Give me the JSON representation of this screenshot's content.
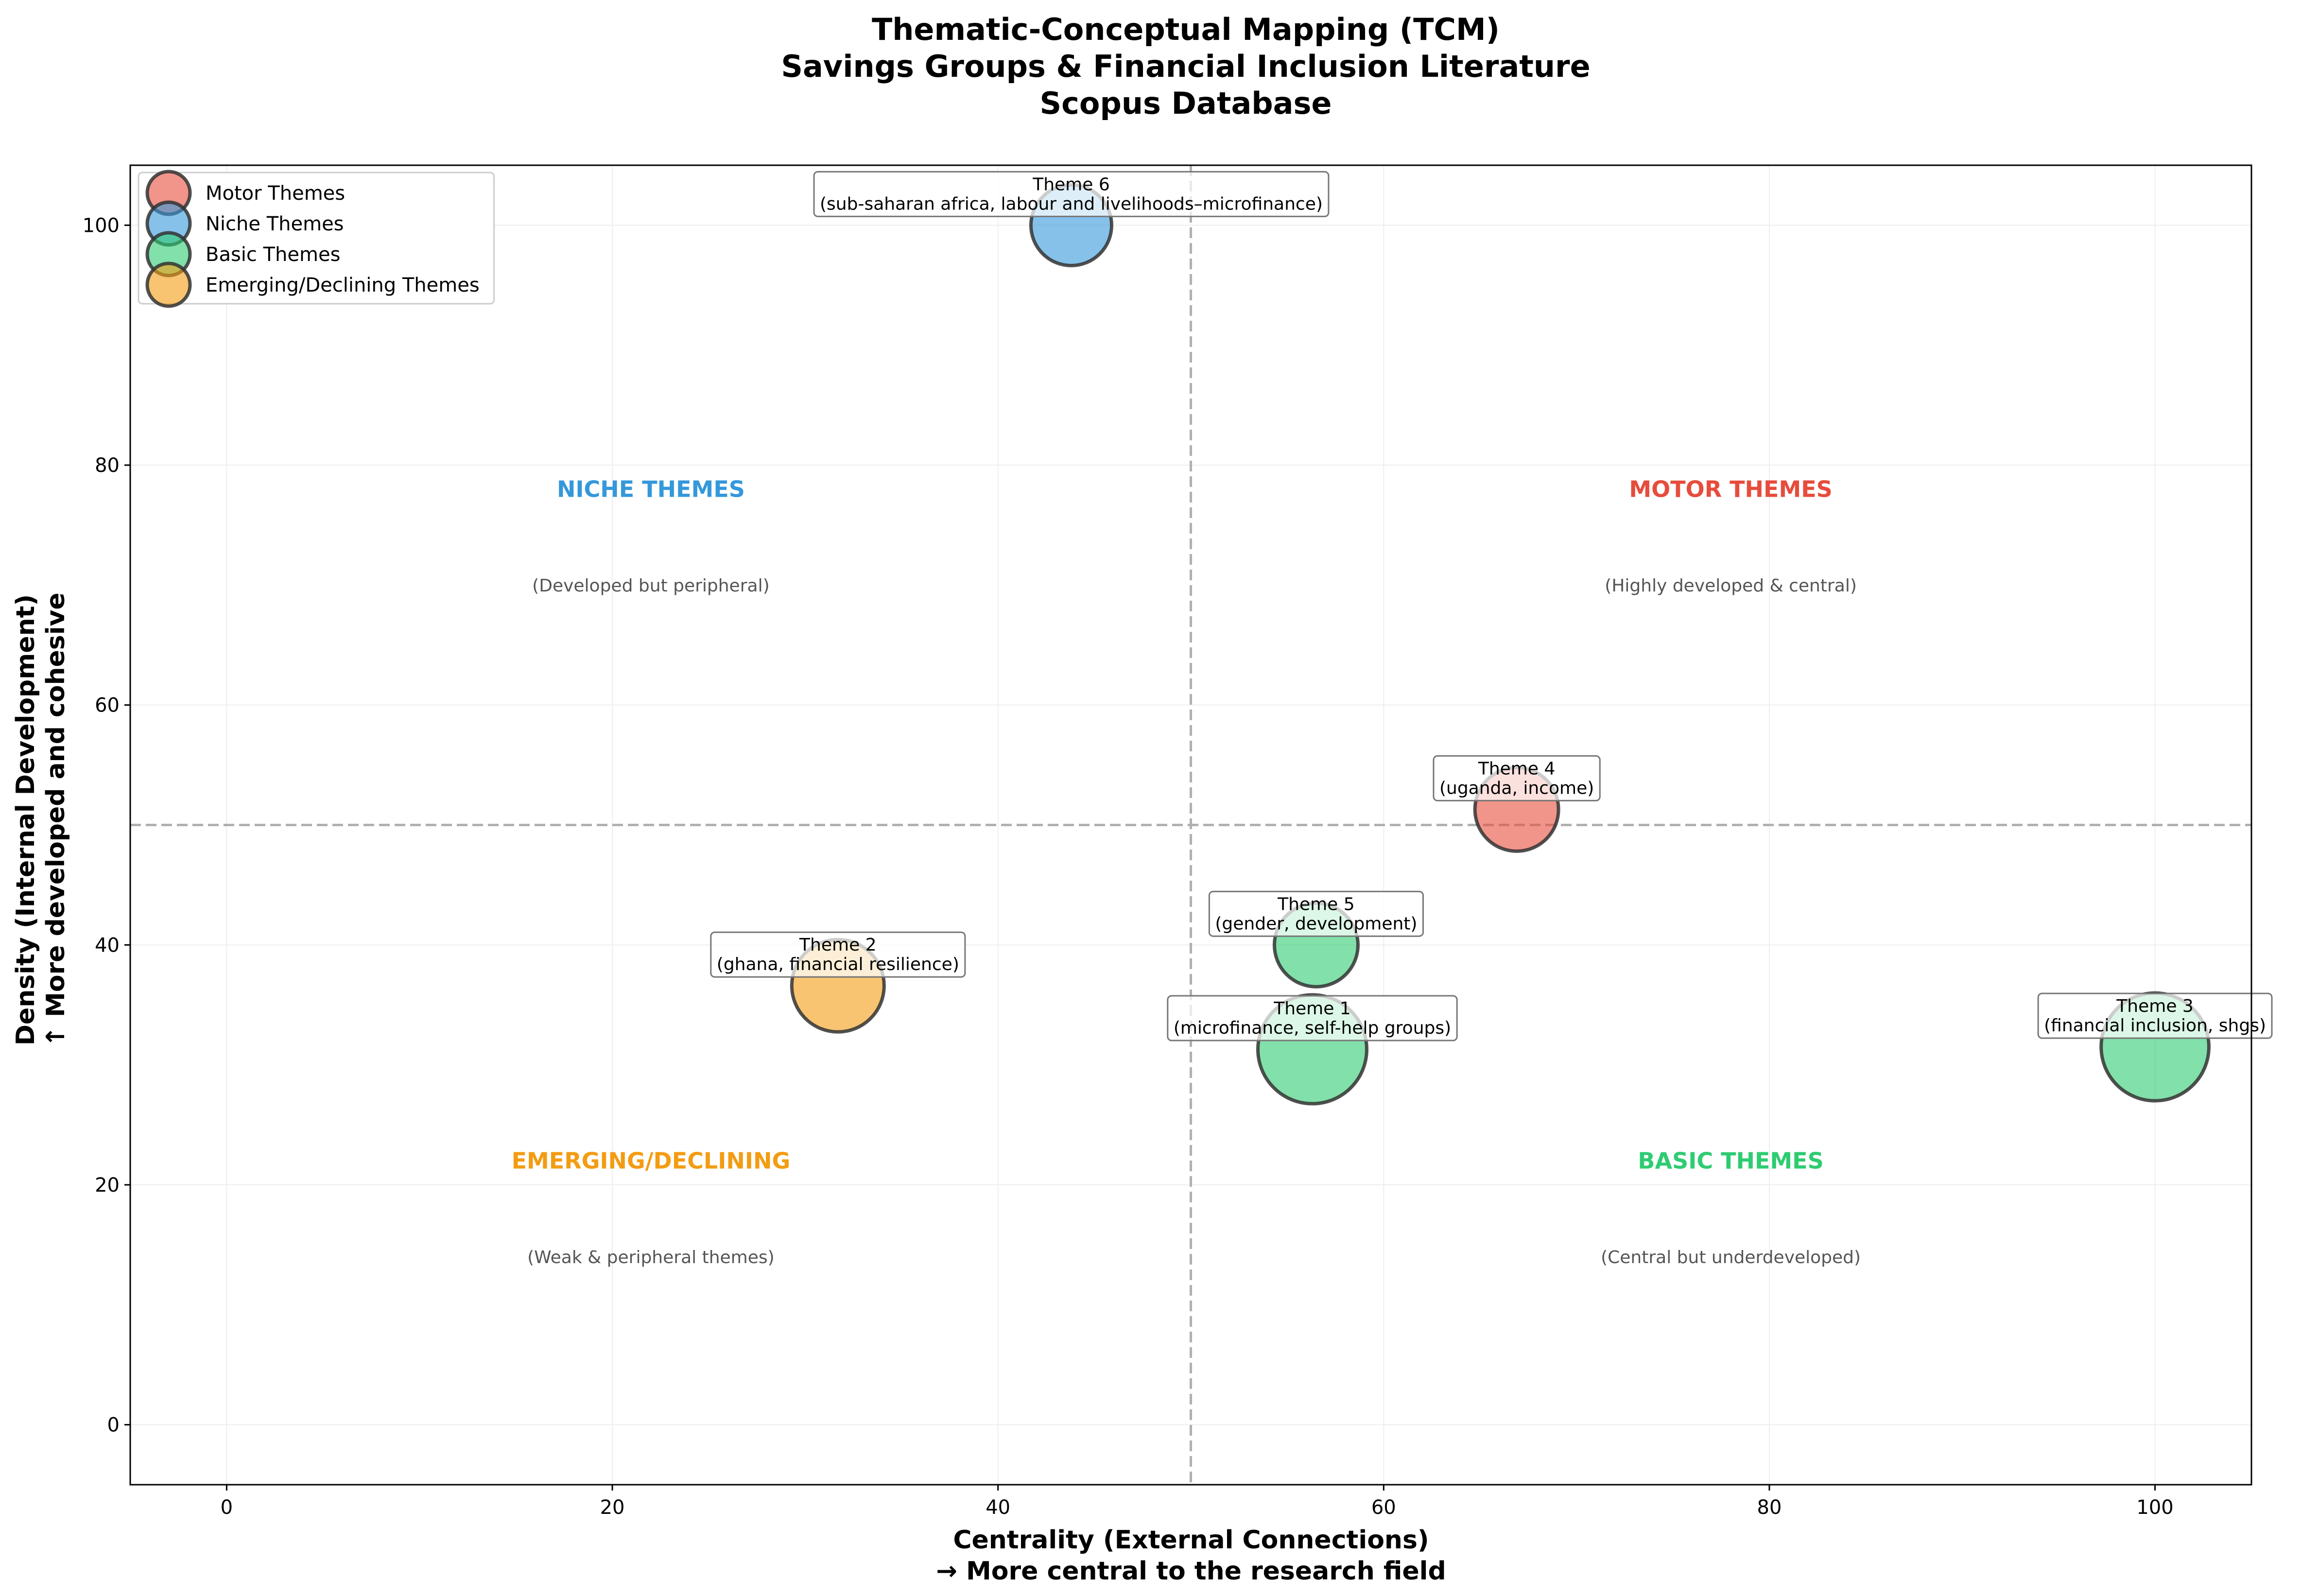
{
  "title_lines": [
    "Thematic-Conceptual Mapping (TCM)",
    "Savings Groups & Financial Inclusion Literature",
    "Scopus Database"
  ],
  "chart_data": {
    "type": "scatter",
    "xlabel": [
      "Centrality (External Connections)",
      "→ More central to the research field"
    ],
    "ylabel": [
      "Density (Internal Development)",
      "↑ More developed and cohesive"
    ],
    "xlim": [
      -5,
      105
    ],
    "ylim": [
      -5,
      105
    ],
    "xticks": [
      0,
      20,
      40,
      60,
      80,
      100
    ],
    "yticks": [
      0,
      20,
      40,
      60,
      80,
      100
    ],
    "grid": true,
    "reference_lines": {
      "x": 50,
      "y": 50
    },
    "legend_position": "upper-left",
    "categories": [
      {
        "key": "motor",
        "name": "Motor Themes",
        "color": "#e74c3c"
      },
      {
        "key": "niche",
        "name": "Niche Themes",
        "color": "#3498db"
      },
      {
        "key": "basic",
        "name": "Basic Themes",
        "color": "#2ecc71"
      },
      {
        "key": "emerging",
        "name": "Emerging/Declining Themes",
        "color": "#f39c12"
      }
    ],
    "quadrants": [
      {
        "title": "NICHE THEMES",
        "subtitle": "(Developed but peripheral)",
        "x": 22,
        "y_title": 78,
        "y_sub": 70,
        "color": "#3498db"
      },
      {
        "title": "MOTOR THEMES",
        "subtitle": "(Highly developed & central)",
        "x": 78,
        "y_title": 78,
        "y_sub": 70,
        "color": "#e74c3c"
      },
      {
        "title": "EMERGING/DECLINING",
        "subtitle": "(Weak & peripheral themes)",
        "x": 22,
        "y_title": 22,
        "y_sub": 14,
        "color": "#f39c12"
      },
      {
        "title": "BASIC THEMES",
        "subtitle": "(Central but underdeveloped)",
        "x": 78,
        "y_title": 22,
        "y_sub": 14,
        "color": "#2ecc71"
      }
    ],
    "points": [
      {
        "name": "Theme 1",
        "label": "(microfinance, self-help groups)",
        "x": 56.3,
        "y": 31.3,
        "size": 1.0,
        "category": "basic"
      },
      {
        "name": "Theme 2",
        "label": "(ghana, financial resilience)",
        "x": 31.7,
        "y": 36.6,
        "size": 0.72,
        "category": "emerging"
      },
      {
        "name": "Theme 3",
        "label": "(financial inclusion, shgs)",
        "x": 100,
        "y": 31.5,
        "size": 0.98,
        "category": "basic"
      },
      {
        "name": "Theme 4",
        "label": "(uganda, income)",
        "x": 66.9,
        "y": 51.3,
        "size": 0.59,
        "category": "motor"
      },
      {
        "name": "Theme 5",
        "label": "(gender, development)",
        "x": 56.5,
        "y": 40.0,
        "size": 0.59,
        "category": "basic"
      },
      {
        "name": "Theme 6",
        "label": "(sub-saharan africa, labour and livelihoods–microfinance)",
        "x": 43.8,
        "y": 100,
        "size": 0.55,
        "category": "niche"
      }
    ]
  }
}
